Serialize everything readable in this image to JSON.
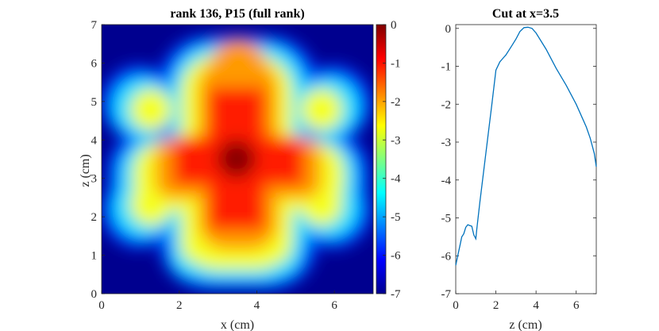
{
  "chart_data": [
    {
      "type": "heatmap",
      "title": "rank 136, P15 (full rank)",
      "xlabel": "x (cm)",
      "ylabel": "z (cm)",
      "xlim": [
        0,
        7
      ],
      "ylim": [
        0,
        7
      ],
      "x_ticks": [
        "0",
        "2",
        "4",
        "6"
      ],
      "y_ticks": [
        "0",
        "1",
        "2",
        "3",
        "4",
        "5",
        "6",
        "7"
      ],
      "colormap": "jet",
      "color_range": [
        -7,
        0
      ],
      "colorbar_ticks": [
        "0",
        "-1",
        "-2",
        "-3",
        "-4",
        "-5",
        "-6",
        "-7"
      ],
      "description": "log-scale field: deep red cross centered near (3.5, 3.5), smaller lobes forming a snowflake-like pattern, blue background"
    },
    {
      "type": "line",
      "title": "Cut at x=3.5",
      "xlabel": "z (cm)",
      "ylabel": "",
      "xlim": [
        0,
        7
      ],
      "ylim": [
        -7,
        0.1
      ],
      "x_ticks": [
        "0",
        "2",
        "4",
        "6"
      ],
      "y_ticks": [
        "0",
        "-1",
        "-2",
        "-3",
        "-4",
        "-5",
        "-6",
        "-7"
      ],
      "color": "#0072BD",
      "x": [
        0.0,
        0.1,
        0.2,
        0.3,
        0.4,
        0.5,
        0.6,
        0.7,
        0.8,
        0.9,
        1.0,
        1.05,
        1.2,
        1.5,
        1.8,
        2.0,
        2.2,
        2.5,
        2.8,
        3.0,
        3.2,
        3.4,
        3.6,
        3.8,
        4.0,
        4.5,
        5.0,
        5.5,
        6.0,
        6.5,
        6.7,
        6.9,
        7.0
      ],
      "y": [
        -6.25,
        -6.0,
        -5.75,
        -5.5,
        -5.42,
        -5.25,
        -5.18,
        -5.2,
        -5.22,
        -5.45,
        -5.55,
        -5.3,
        -4.6,
        -3.3,
        -2.0,
        -1.1,
        -0.88,
        -0.7,
        -0.45,
        -0.28,
        -0.08,
        0.02,
        0.03,
        0.0,
        -0.12,
        -0.55,
        -1.05,
        -1.5,
        -2.0,
        -2.6,
        -2.9,
        -3.3,
        -3.65
      ]
    }
  ]
}
